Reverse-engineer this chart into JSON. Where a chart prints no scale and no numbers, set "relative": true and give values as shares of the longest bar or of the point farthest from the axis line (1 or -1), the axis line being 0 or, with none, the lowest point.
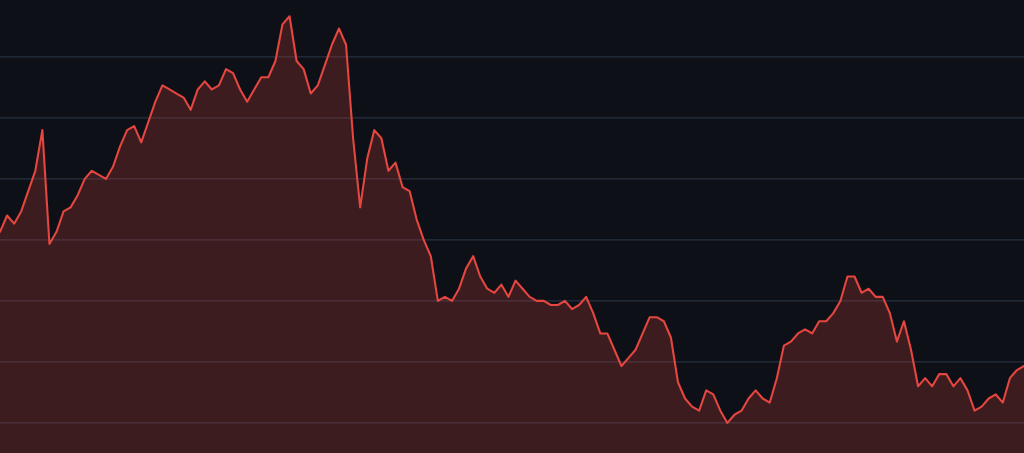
{
  "chart_data": {
    "type": "area",
    "relative": true,
    "grid": "y",
    "series": [
      {
        "color": "#e5463f",
        "values": [
          0.47,
          0.51,
          0.49,
          0.52,
          0.57,
          0.62,
          0.72,
          0.44,
          0.47,
          0.52,
          0.53,
          0.56,
          0.6,
          0.62,
          0.61,
          0.6,
          0.63,
          0.68,
          0.72,
          0.73,
          0.69,
          0.74,
          0.79,
          0.83,
          0.82,
          0.81,
          0.8,
          0.77,
          0.82,
          0.84,
          0.82,
          0.83,
          0.87,
          0.86,
          0.82,
          0.79,
          0.82,
          0.85,
          0.85,
          0.89,
          0.98,
          1,
          0.89,
          0.87,
          0.81,
          0.83,
          0.88,
          0.93,
          0.97,
          0.93,
          0.7,
          0.53,
          0.65,
          0.72,
          0.7,
          0.62,
          0.64,
          0.58,
          0.57,
          0.5,
          0.45,
          0.41,
          0.3,
          0.31,
          0.3,
          0.33,
          0.38,
          0.41,
          0.36,
          0.33,
          0.32,
          0.34,
          0.31,
          0.35,
          0.33,
          0.31,
          0.3,
          0.3,
          0.29,
          0.29,
          0.3,
          0.28,
          0.29,
          0.31,
          0.27,
          0.22,
          0.22,
          0.18,
          0.14,
          0.16,
          0.18,
          0.22,
          0.26,
          0.26,
          0.25,
          0.21,
          0.1,
          0.06,
          0.04,
          0.03,
          0.08,
          0.07,
          0.03,
          0,
          0.02,
          0.03,
          0.06,
          0.08,
          0.06,
          0.05,
          0.11,
          0.19,
          0.2,
          0.22,
          0.23,
          0.22,
          0.25,
          0.25,
          0.27,
          0.3,
          0.36,
          0.36,
          0.32,
          0.33,
          0.31,
          0.31,
          0.27,
          0.2,
          0.25,
          0.18,
          0.09,
          0.11,
          0.09,
          0.12,
          0.12,
          0.09,
          0.11,
          0.08,
          0.03,
          0.04,
          0.06,
          0.07,
          0.05,
          0.11,
          0.13,
          0.14
        ]
      }
    ]
  }
}
